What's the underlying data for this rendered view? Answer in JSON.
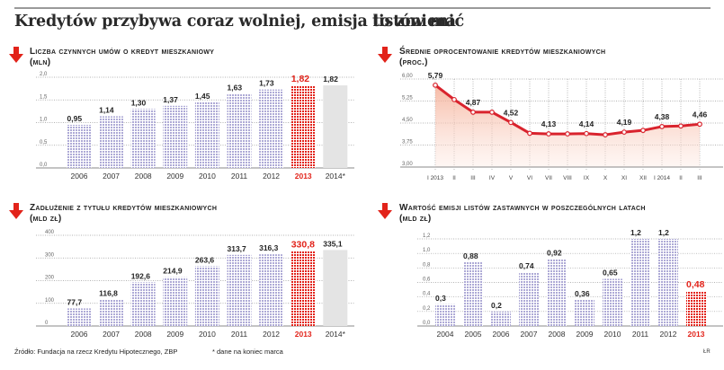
{
  "headline": {
    "left": "Kredytów przybywa coraz wolniej, emisja listów ma",
    "right": "to zmienić"
  },
  "colors": {
    "accent_red": "#e2231a",
    "bar_purple": "#b8b6dc",
    "bar_gray": "#e4e4e4",
    "line_red": "#d9232d",
    "area_fill": "#f6c3b3"
  },
  "footer": {
    "source": "Źródło: Fundacja na rzecz Kredytu Hipotecznego, ZBP",
    "note": "* dane na koniec marca",
    "initials": "ŁR"
  },
  "chart_data": [
    {
      "id": "contracts",
      "type": "bar",
      "title": "Liczba czynnych umów o kredyt mieszkaniowy",
      "unit": "(mln)",
      "categories": [
        "2006",
        "2007",
        "2008",
        "2009",
        "2010",
        "2011",
        "2012",
        "2013",
        "2014*"
      ],
      "values": [
        0.95,
        1.14,
        1.3,
        1.37,
        1.45,
        1.63,
        1.73,
        1.82,
        1.82
      ],
      "value_labels": [
        "0,95",
        "1,14",
        "1,30",
        "1,37",
        "1,45",
        "1,63",
        "1,73",
        "1,82",
        "1,82"
      ],
      "highlight": "2013",
      "forecast": "2014*",
      "yticks": [
        "0,0",
        "0,5",
        "1,0",
        "1,5",
        "2,0"
      ],
      "ytick_values": [
        0,
        0.5,
        1.0,
        1.5,
        2.0
      ],
      "ylim": [
        0,
        2.0
      ],
      "grid": true
    },
    {
      "id": "rates",
      "type": "line",
      "title": "Średnie oprocentowanie kredytów mieszkaniowych",
      "unit": "(proc.)",
      "categories": [
        "I 2013",
        "II",
        "III",
        "IV",
        "V",
        "VI",
        "VII",
        "VIII",
        "IX",
        "X",
        "XI",
        "XII",
        "I 2014",
        "II",
        "III"
      ],
      "values": [
        5.79,
        5.3,
        4.87,
        4.87,
        4.52,
        4.15,
        4.13,
        4.13,
        4.14,
        4.1,
        4.19,
        4.25,
        4.38,
        4.4,
        4.46
      ],
      "labeled_points": [
        {
          "index": 0,
          "label": "5,79"
        },
        {
          "index": 2,
          "label": "4,87"
        },
        {
          "index": 4,
          "label": "4,52"
        },
        {
          "index": 6,
          "label": "4,13"
        },
        {
          "index": 8,
          "label": "4,14"
        },
        {
          "index": 10,
          "label": "4,19"
        },
        {
          "index": 12,
          "label": "4,38"
        },
        {
          "index": 14,
          "label": "4,46"
        }
      ],
      "yticks": [
        "3,00",
        "3,75",
        "4,50",
        "5,25",
        "6,00"
      ],
      "ytick_values": [
        3.0,
        3.75,
        4.5,
        5.25,
        6.0
      ],
      "ylim": [
        3.0,
        6.0
      ],
      "grid": true
    },
    {
      "id": "debt",
      "type": "bar",
      "title": "Zadłużenie z tytułu kredytów mieszkaniowych",
      "unit": "(mld zł)",
      "categories": [
        "2006",
        "2007",
        "2008",
        "2009",
        "2010",
        "2011",
        "2012",
        "2013",
        "2014*"
      ],
      "values": [
        77.7,
        116.8,
        192.6,
        214.9,
        263.6,
        313.7,
        316.3,
        330.8,
        335.1
      ],
      "value_labels": [
        "77,7",
        "116,8",
        "192,6",
        "214,9",
        "263,6",
        "313,7",
        "316,3",
        "330,8",
        "335,1"
      ],
      "highlight": "2013",
      "forecast": "2014*",
      "yticks": [
        "0",
        "100",
        "200",
        "300",
        "400"
      ],
      "ytick_values": [
        0,
        100,
        200,
        300,
        400
      ],
      "ylim": [
        0,
        400
      ],
      "grid": true
    },
    {
      "id": "bonds",
      "type": "bar",
      "title": "Wartość emisji listów zastawnych w poszczególnych latach",
      "unit": "(mld zł)",
      "categories": [
        "2004",
        "2005",
        "2006",
        "2007",
        "2008",
        "2009",
        "2010",
        "2011",
        "2012",
        "2013"
      ],
      "values": [
        0.3,
        0.88,
        0.2,
        0.74,
        0.92,
        0.36,
        0.65,
        1.2,
        1.2,
        0.48
      ],
      "value_labels": [
        "0,3",
        "0,88",
        "0,2",
        "0,74",
        "0,92",
        "0,36",
        "0,65",
        "1,2",
        "1,2",
        "0,48"
      ],
      "highlight": "2013",
      "yticks": [
        "0,0",
        "0,2",
        "0,4",
        "0,6",
        "0,8",
        "1,0",
        "1,2"
      ],
      "ytick_values": [
        0,
        0.2,
        0.4,
        0.6,
        0.8,
        1.0,
        1.2
      ],
      "ylim": [
        0,
        1.2
      ],
      "grid": true
    }
  ]
}
